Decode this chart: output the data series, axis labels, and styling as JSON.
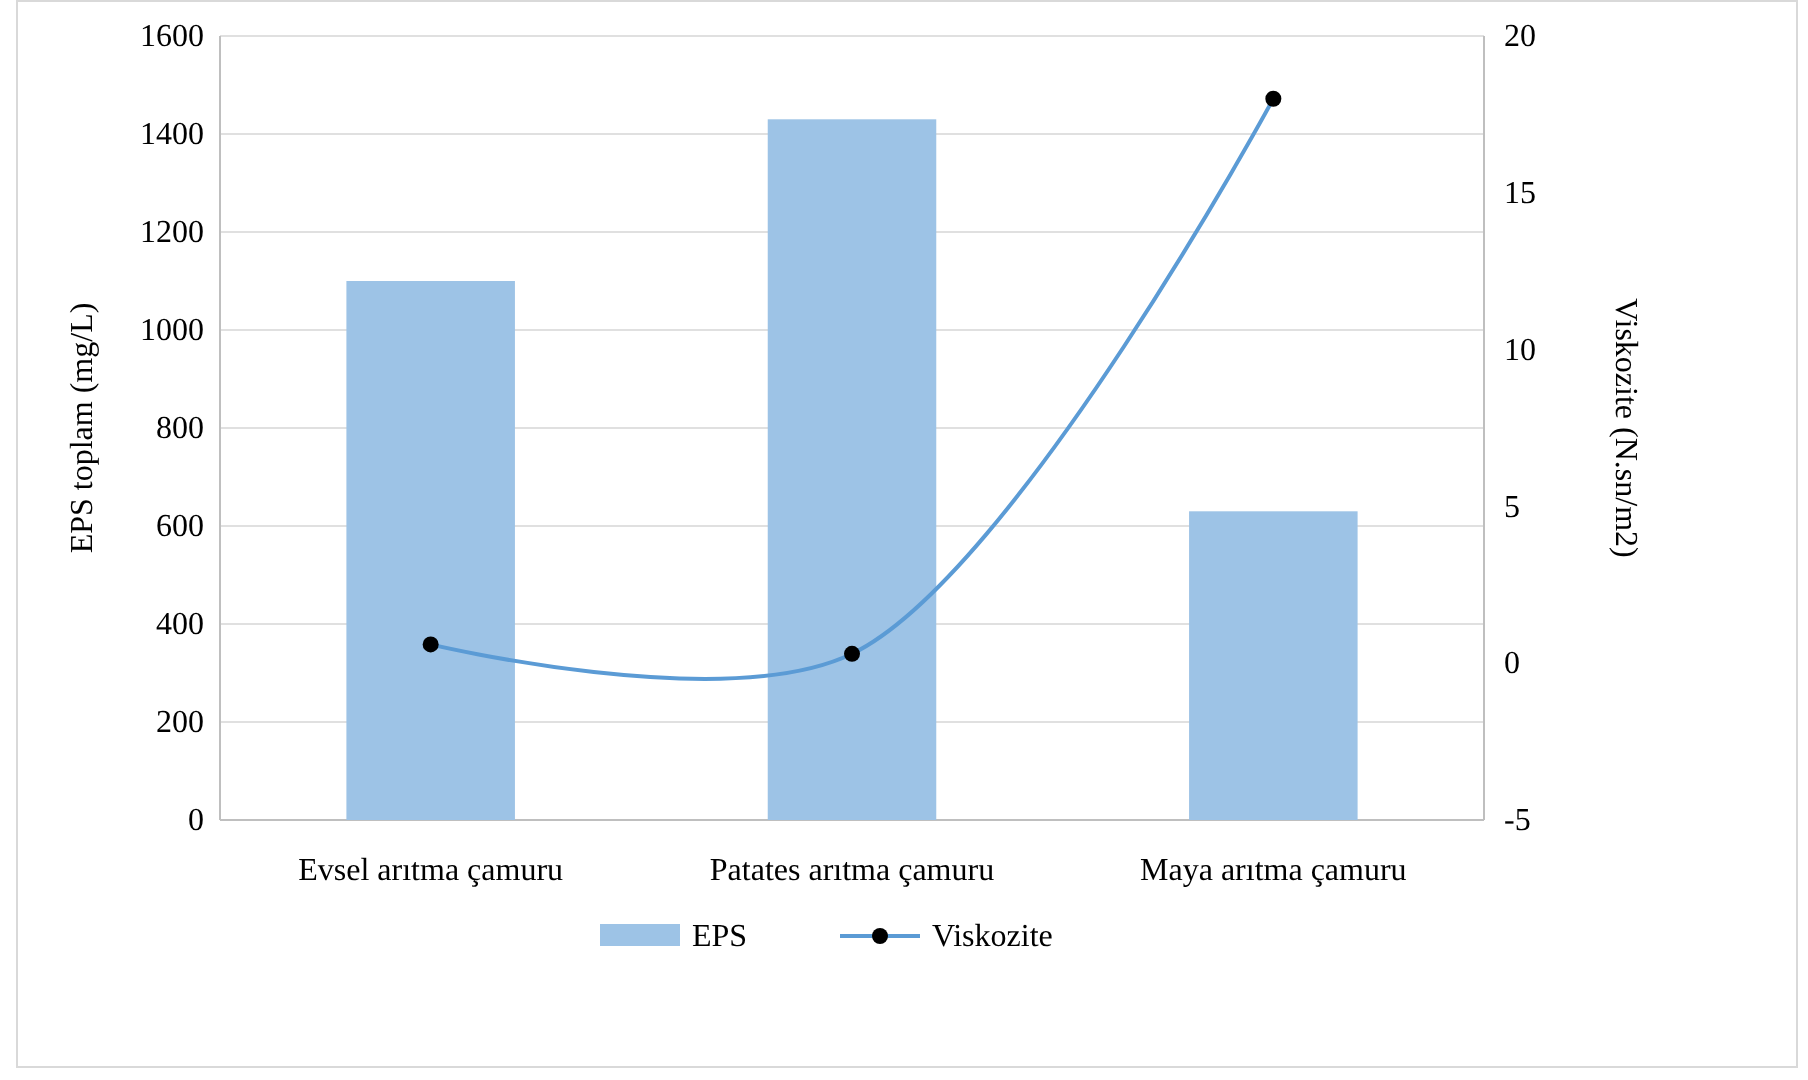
{
  "chart_data": {
    "type": "bar",
    "categories": [
      "Evsel arıtma çamuru",
      "Patates arıtma çamuru",
      "Maya arıtma çamuru"
    ],
    "series": [
      {
        "name": "EPS",
        "color": "#9dc3e6",
        "values": [
          1100,
          1430,
          630
        ]
      },
      {
        "name": "Viskozite",
        "type": "line",
        "axis": "y2",
        "color": "#5b9bd5",
        "marker": "circle",
        "values": [
          0.6,
          0.3,
          18
        ]
      }
    ],
    "ylabel": "EPS toplam (mg/L)",
    "y2label": "Viskozite (N.sn/m2)",
    "ylim": [
      0,
      1600
    ],
    "yticks": [
      0,
      200,
      400,
      600,
      800,
      1000,
      1200,
      1400,
      1600
    ],
    "y2lim": [
      -5,
      20
    ],
    "y2ticks": [
      -5,
      0,
      5,
      10,
      15,
      20
    ],
    "grid": "y",
    "legend": "bottom"
  }
}
